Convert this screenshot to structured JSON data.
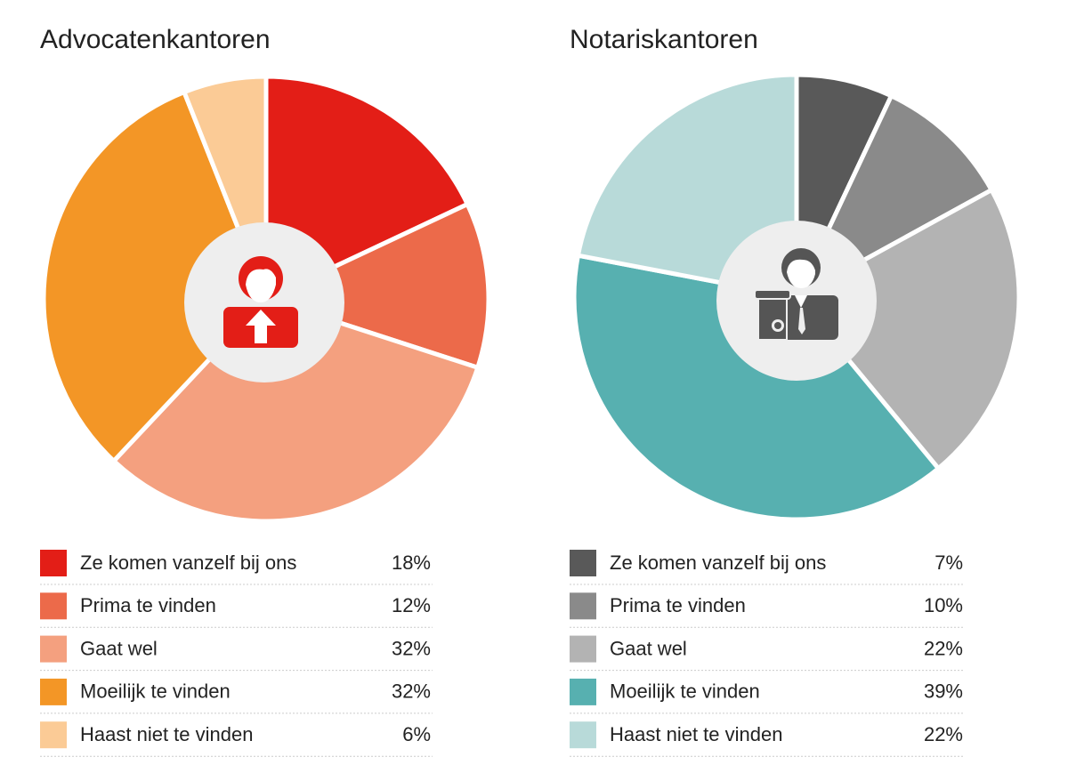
{
  "chart_data": [
    {
      "type": "pie",
      "title": "Advocatenkantoren",
      "categories": [
        "Ze komen vanzelf bij ons",
        "Prima te vinden",
        "Gaat wel",
        "Moeilijk te vinden",
        "Haast niet te vinden"
      ],
      "values": [
        18,
        12,
        32,
        32,
        6
      ],
      "value_labels": [
        "18%",
        "12%",
        "32%",
        "32%",
        "6%"
      ],
      "colors": [
        "#e31e17",
        "#ec6a4a",
        "#f4a07f",
        "#f39626",
        "#fbcb96"
      ]
    },
    {
      "type": "pie",
      "title": "Notariskantoren",
      "categories": [
        "Ze komen vanzelf bij ons",
        "Prima te vinden",
        "Gaat wel",
        "Moeilijk te vinden",
        "Haast niet te vinden"
      ],
      "values": [
        7,
        10,
        22,
        39,
        22
      ],
      "value_labels": [
        "7%",
        "10%",
        "22%",
        "39%",
        "22%"
      ],
      "colors": [
        "#595959",
        "#8a8a8a",
        "#b3b3b3",
        "#57b0b0",
        "#b8dad9"
      ]
    }
  ]
}
